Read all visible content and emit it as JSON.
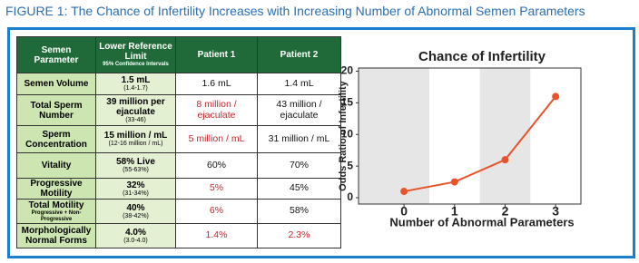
{
  "figure_title": "FIGURE 1: The Chance of Infertility Increases with Increasing Number of Abnormal Semen Parameters",
  "table": {
    "header": [
      "Semen Parameter",
      "Lower Reference Limit",
      "Patient 1",
      "Patient 2"
    ],
    "header_note": "95% Confidence Intervals",
    "rows": [
      {
        "parameter": "Semen Volume",
        "limit": "1.5 mL",
        "interval": "(1.4-1.7)",
        "patient_1": {
          "text": "1.6 mL",
          "color": "#111111"
        },
        "patient_2": {
          "text": "1.4 mL",
          "color": "#111111"
        }
      },
      {
        "parameter": "Total Sperm Number",
        "limit": "39 million per ejaculate",
        "interval": "(33-46)",
        "patient_1": {
          "text": "8 million / ejaculate",
          "color": "#c0272d"
        },
        "patient_2": {
          "text": "43 million / ejaculate",
          "color": "#111111"
        }
      },
      {
        "parameter": "Sperm Concentration",
        "limit": "15 million / mL",
        "interval": "(12-16 million / mL)",
        "patient_1": {
          "text": "5 million / mL",
          "color": "#c0272d"
        },
        "patient_2": {
          "text": "31 million / mL",
          "color": "#111111"
        }
      },
      {
        "parameter": "Vitality",
        "limit": "58% Live",
        "interval": "(55-63%)",
        "patient_1": {
          "text": "60%",
          "color": "#111111"
        },
        "patient_2": {
          "text": "70%",
          "color": "#111111"
        }
      },
      {
        "parameter": "Progressive Motility",
        "limit": "32%",
        "interval": "(31-34%)",
        "patient_1": {
          "text": "5%",
          "color": "#c0272d"
        },
        "patient_2": {
          "text": "45%",
          "color": "#111111"
        }
      },
      {
        "parameter": "Total Motility",
        "parameter_note": "Progressive + Non-Progressive",
        "limit": "40%",
        "interval": "(38-42%)",
        "patient_1": {
          "text": "6%",
          "color": "#c0272d"
        },
        "patient_2": {
          "text": "58%",
          "color": "#111111"
        }
      },
      {
        "parameter": "Morphologically Normal Forms",
        "limit": "4.0%",
        "interval": "(3.0-4.0)",
        "patient_1": {
          "text": "1.4%",
          "color": "#c0272d"
        },
        "patient_2": {
          "text": "2.3%",
          "color": "#c0272d"
        }
      }
    ]
  },
  "chart_data": {
    "type": "line",
    "title": "Chance of Infertility",
    "x_label": "Number of Abnormal Parameters",
    "y_label": "Odds Ratio of Infertility",
    "x": [
      0,
      1,
      2,
      3
    ],
    "values": [
      1,
      2.5,
      6,
      16
    ],
    "color": "#e8532a",
    "xlim": [
      -0.9,
      3.5
    ],
    "xticks": [
      0,
      1,
      2,
      3
    ],
    "ylim": [
      -1,
      20.5
    ],
    "yticks": [
      0,
      5,
      10,
      15,
      20
    ]
  }
}
